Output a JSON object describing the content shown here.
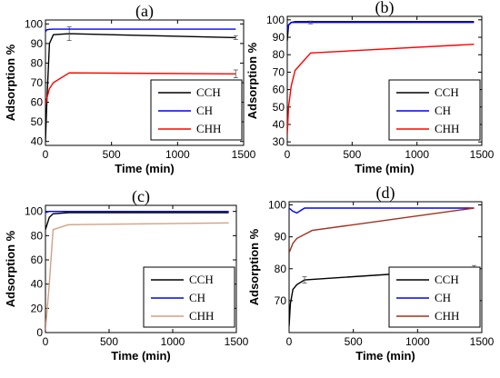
{
  "chart_data": [
    {
      "type": "line",
      "panel_label": "(a)",
      "xlabel": "Time (min)",
      "ylabel": "Adsorption %",
      "xlim": [
        0,
        1500
      ],
      "ylim": [
        38,
        102
      ],
      "xticks": [
        0,
        500,
        1000,
        1500
      ],
      "yticks": [
        40,
        50,
        60,
        70,
        80,
        90,
        100
      ],
      "grid": false,
      "legend_position": "bottom-right",
      "series": [
        {
          "name": "CCH",
          "color": "#000000",
          "x": [
            0,
            10,
            30,
            60,
            180,
            1440
          ],
          "y": [
            40,
            60,
            90,
            94.5,
            95,
            93
          ],
          "error": [
            0,
            0,
            0,
            0,
            3.5,
            1
          ]
        },
        {
          "name": "CH",
          "color": "#0000ff",
          "x": [
            0,
            10,
            30,
            60,
            180,
            1440
          ],
          "y": [
            96,
            97,
            97.2,
            97.3,
            97.3,
            97.3
          ],
          "error": [
            0,
            0,
            0,
            0,
            0,
            0
          ]
        },
        {
          "name": "CHH",
          "color": "#ff0000",
          "x": [
            0,
            10,
            30,
            60,
            180,
            1440
          ],
          "y": [
            59,
            62,
            67,
            70,
            75,
            74.5
          ],
          "error": [
            0,
            0,
            0,
            0,
            0,
            2
          ]
        }
      ]
    },
    {
      "type": "line",
      "panel_label": "(b)",
      "xlabel": "Time (min)",
      "ylabel": "Adsorption %",
      "xlim": [
        0,
        1500
      ],
      "ylim": [
        28,
        102
      ],
      "xticks": [
        0,
        500,
        1000,
        1500
      ],
      "yticks": [
        30,
        40,
        50,
        60,
        70,
        80,
        90,
        100
      ],
      "grid": false,
      "legend_position": "bottom-right",
      "series": [
        {
          "name": "CCH",
          "color": "#000000",
          "x": [
            0,
            10,
            30,
            60,
            180,
            1440
          ],
          "y": [
            88,
            97,
            98.5,
            99,
            99,
            99
          ],
          "error": [
            0,
            0,
            0,
            0,
            0,
            0
          ]
        },
        {
          "name": "CH",
          "color": "#0000ff",
          "x": [
            0,
            10,
            30,
            60,
            180,
            1440
          ],
          "y": [
            94,
            97,
            98.5,
            98.5,
            98.5,
            98.5
          ],
          "error": [
            0,
            0,
            0,
            0,
            0.8,
            0
          ]
        },
        {
          "name": "CHH",
          "color": "#ff0000",
          "x": [
            0,
            10,
            30,
            60,
            180,
            1440
          ],
          "y": [
            34,
            50,
            62,
            71,
            81,
            86
          ],
          "error": [
            0,
            0,
            0,
            0,
            0,
            0
          ]
        }
      ]
    },
    {
      "type": "line",
      "panel_label": "(c)",
      "xlabel": "Time (min)",
      "ylabel": "Adsorption %",
      "xlim": [
        0,
        1500
      ],
      "ylim": [
        0,
        105
      ],
      "xticks": [
        0,
        500,
        1000,
        1500
      ],
      "yticks": [
        0,
        20,
        40,
        60,
        80,
        100
      ],
      "grid": false,
      "legend_position": "bottom-right",
      "series": [
        {
          "name": "CCH",
          "color": "#000000",
          "x": [
            0,
            30,
            60,
            180,
            1440
          ],
          "y": [
            85,
            95,
            98,
            99,
            99
          ],
          "error": [
            0,
            0,
            0,
            0,
            0
          ]
        },
        {
          "name": "CH",
          "color": "#0000ff",
          "x": [
            0,
            30,
            60,
            180,
            1440
          ],
          "y": [
            99,
            100,
            100,
            100,
            100
          ],
          "error": [
            0,
            0,
            0,
            0,
            0
          ]
        },
        {
          "name": "CHH",
          "color": "#d2a184",
          "x": [
            0,
            30,
            60,
            180,
            1440
          ],
          "y": [
            2,
            40,
            85,
            89,
            90.5
          ],
          "error": [
            0,
            0,
            0,
            0,
            0
          ]
        }
      ]
    },
    {
      "type": "line",
      "panel_label": "(d)",
      "xlabel": "Time (min)",
      "ylabel": "Adsorption %",
      "xlim": [
        0,
        1500
      ],
      "ylim": [
        60,
        101
      ],
      "xticks": [
        0,
        500,
        1000,
        1500
      ],
      "yticks": [
        70,
        80,
        90,
        100
      ],
      "grid": false,
      "legend_position": "bottom-right",
      "series": [
        {
          "name": "CCH",
          "color": "#000000",
          "x": [
            0,
            10,
            30,
            60,
            120,
            1440
          ],
          "y": [
            62,
            69,
            73.5,
            75,
            76.5,
            80
          ],
          "error": [
            0,
            0,
            0,
            0,
            1,
            1
          ]
        },
        {
          "name": "CH",
          "color": "#0000ff",
          "x": [
            0,
            30,
            60,
            120,
            1440
          ],
          "y": [
            99,
            98,
            97.5,
            99,
            99
          ],
          "error": [
            0,
            0,
            0,
            0,
            0
          ]
        },
        {
          "name": "CHH",
          "color": "#a0301f",
          "x": [
            0,
            10,
            30,
            60,
            180,
            1440
          ],
          "y": [
            85,
            86,
            88,
            89.5,
            92,
            99
          ],
          "error": [
            0,
            0,
            0,
            0,
            0,
            0
          ]
        }
      ]
    }
  ]
}
